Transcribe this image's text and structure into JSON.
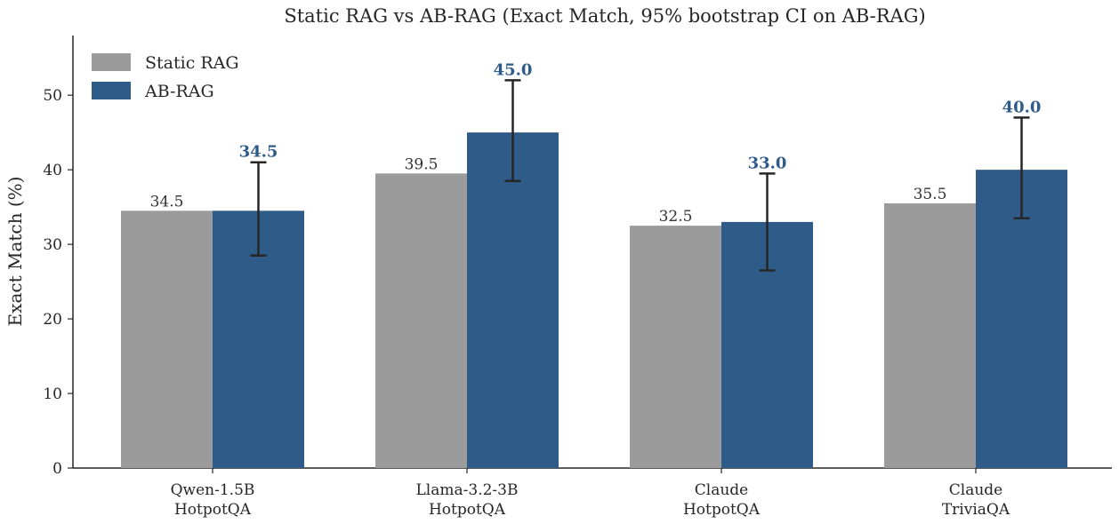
{
  "chart_data": {
    "type": "bar",
    "title": "Static RAG vs AB-RAG  (Exact Match, 95% bootstrap CI on AB-RAG)",
    "xlabel": "",
    "ylabel": "Exact Match (%)",
    "ylim": [
      0,
      58
    ],
    "yticks": [
      0,
      10,
      20,
      30,
      40,
      50
    ],
    "categories": [
      [
        "Qwen-1.5B",
        "HotpotQA"
      ],
      [
        "Llama-3.2-3B",
        "HotpotQA"
      ],
      [
        "Claude",
        "HotpotQA"
      ],
      [
        "Claude",
        "TriviaQA"
      ]
    ],
    "series": [
      {
        "name": "Static RAG",
        "color": "#9b9b9b",
        "values": [
          34.5,
          39.5,
          32.5,
          35.5
        ],
        "labels": [
          "34.5",
          "39.5",
          "32.5",
          "35.5"
        ]
      },
      {
        "name": "AB-RAG",
        "color": "#2e5b88",
        "values": [
          34.5,
          45.0,
          33.0,
          40.0
        ],
        "labels": [
          "34.5",
          "45.0",
          "33.0",
          "40.0"
        ],
        "ci_low": [
          28.5,
          38.5,
          26.5,
          33.5
        ],
        "ci_high": [
          41.0,
          52.0,
          39.5,
          47.0
        ]
      }
    ],
    "legend_position": "top-left",
    "grid": false,
    "errorbar_color": "#262626"
  }
}
